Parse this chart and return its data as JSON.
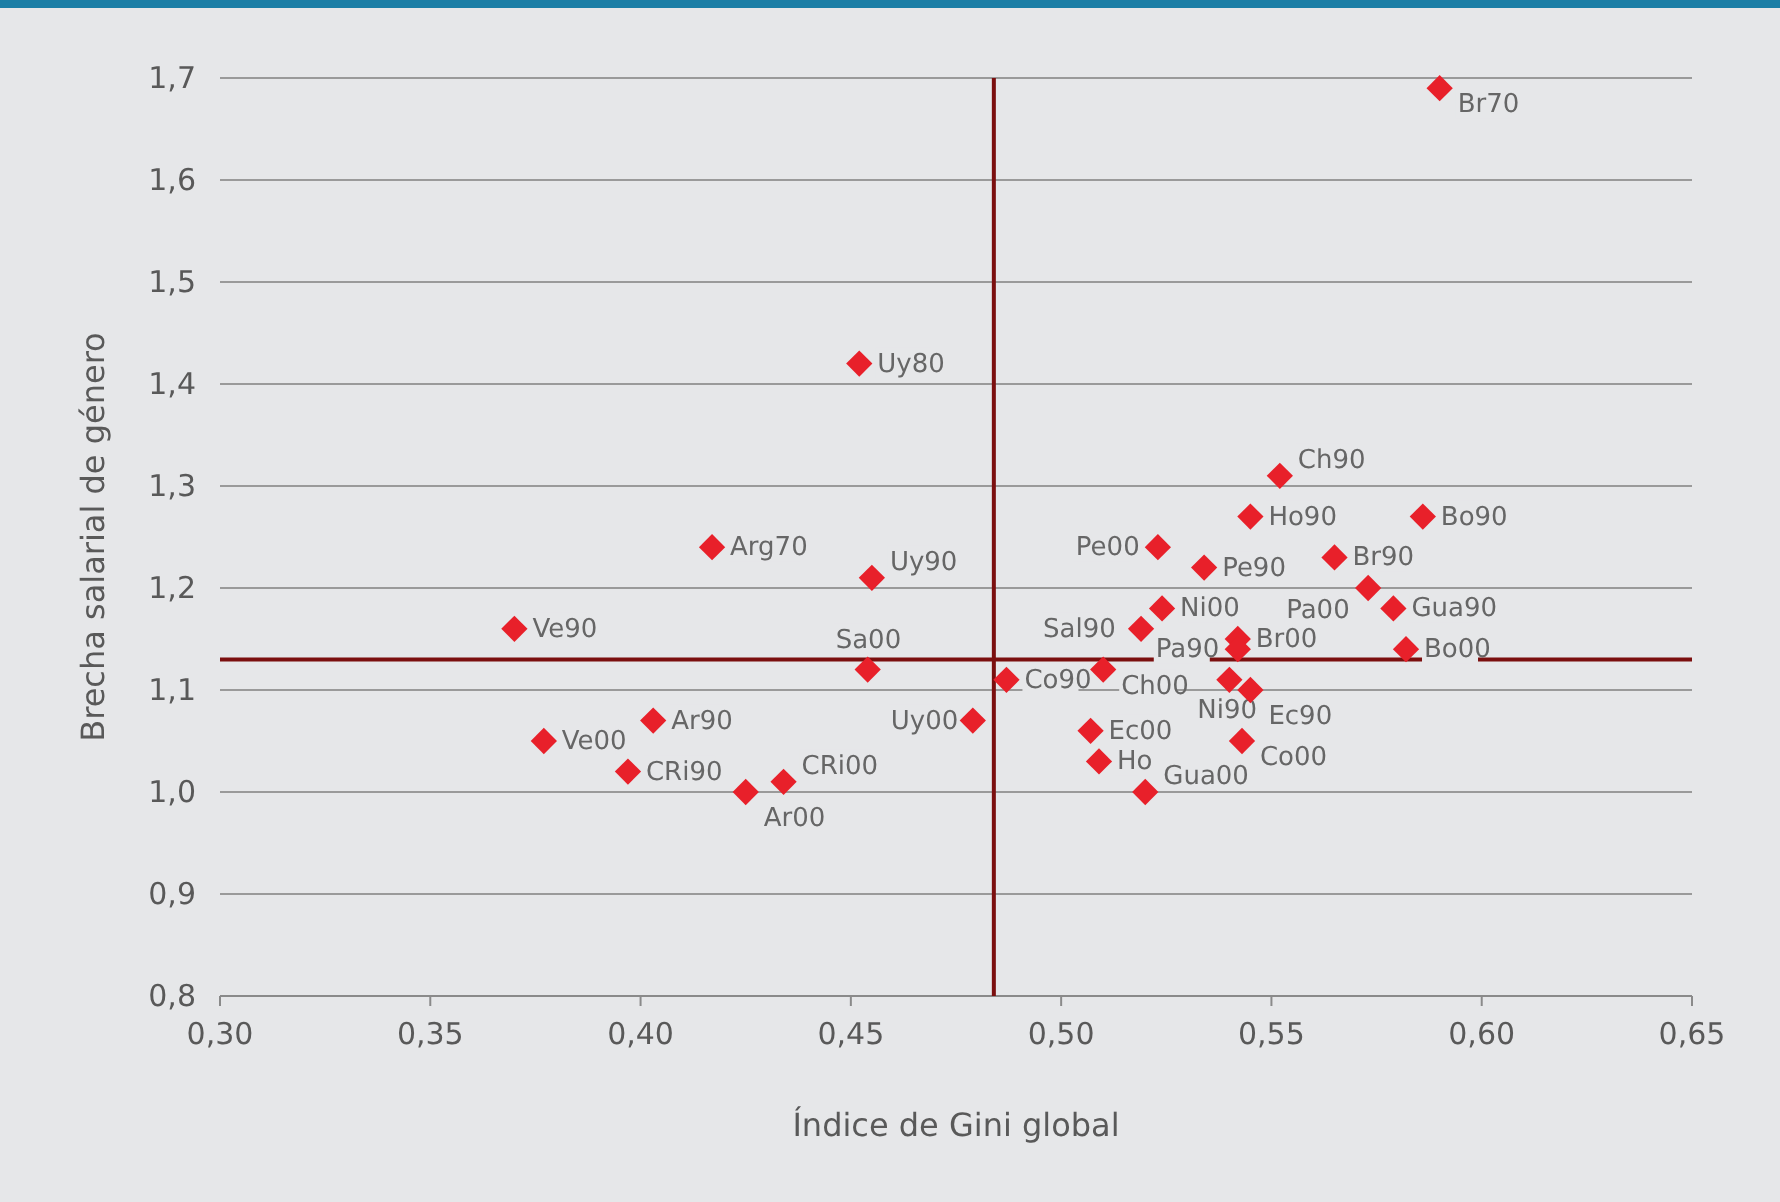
{
  "chart_data": {
    "type": "scatter",
    "xlabel": "Índice de Gini global",
    "ylabel": "Brecha salarial de género",
    "xlim": [
      0.3,
      0.65
    ],
    "xticks": [
      {
        "value": 0.3,
        "label": "0,30"
      },
      {
        "value": 0.35,
        "label": "0,35"
      },
      {
        "value": 0.4,
        "label": "0,40"
      },
      {
        "value": 0.45,
        "label": "0,45"
      },
      {
        "value": 0.5,
        "label": "0,50"
      },
      {
        "value": 0.55,
        "label": "0,55"
      },
      {
        "value": 0.6,
        "label": "0,60"
      },
      {
        "value": 0.65,
        "label": "0,65"
      }
    ],
    "ylim": [
      0.8,
      1.7
    ],
    "yticks": [
      {
        "value": 0.8,
        "label": "0,8"
      },
      {
        "value": 0.9,
        "label": "0,9"
      },
      {
        "value": 1.0,
        "label": "1,0"
      },
      {
        "value": 1.1,
        "label": "1,1"
      },
      {
        "value": 1.2,
        "label": "1,2"
      },
      {
        "value": 1.3,
        "label": "1,3"
      },
      {
        "value": 1.4,
        "label": "1,4"
      },
      {
        "value": 1.5,
        "label": "1,5"
      },
      {
        "value": 1.6,
        "label": "1,6"
      },
      {
        "value": 1.7,
        "label": "1,7"
      }
    ],
    "grid": "y",
    "marker": "diamond",
    "series": [
      {
        "color": "#e8202a",
        "x": [
          0.59,
          0.452,
          0.417,
          0.455,
          0.37,
          0.454,
          0.487,
          0.479,
          0.403,
          0.377,
          0.397,
          0.425,
          0.434,
          0.552,
          0.545,
          0.586,
          0.523,
          0.534,
          0.565,
          0.573,
          0.579,
          0.524,
          0.519,
          0.542,
          0.542,
          0.582,
          0.51,
          0.54,
          0.545,
          0.507,
          0.543,
          0.509,
          0.52
        ],
        "values": [
          1.69,
          1.42,
          1.24,
          1.21,
          1.16,
          1.12,
          1.11,
          1.07,
          1.07,
          1.05,
          1.02,
          1.0,
          1.01,
          1.31,
          1.27,
          1.27,
          1.24,
          1.22,
          1.23,
          1.2,
          1.18,
          1.18,
          1.16,
          1.15,
          1.14,
          1.14,
          1.12,
          1.11,
          1.1,
          1.06,
          1.05,
          1.03,
          1.0
        ]
      }
    ],
    "ref_lines": [
      {
        "axis": "x",
        "value": 0.484,
        "color": "#7b0f0f"
      },
      {
        "axis": "y",
        "value": 1.13,
        "color": "#7b0f0f"
      }
    ],
    "annotations": [
      {
        "text": "Br70",
        "x": 0.59,
        "y": 1.69
      },
      {
        "text": "Uy80",
        "x": 0.452,
        "y": 1.42
      },
      {
        "text": "Arg70",
        "x": 0.417,
        "y": 1.24
      },
      {
        "text": "Uy90",
        "x": 0.455,
        "y": 1.21
      },
      {
        "text": "Ve90",
        "x": 0.37,
        "y": 1.16
      },
      {
        "text": "Sa00",
        "x": 0.454,
        "y": 1.12
      },
      {
        "text": "Co90",
        "x": 0.487,
        "y": 1.11
      },
      {
        "text": "Uy00",
        "x": 0.479,
        "y": 1.07
      },
      {
        "text": "Ar90",
        "x": 0.403,
        "y": 1.07
      },
      {
        "text": "Ve00",
        "x": 0.377,
        "y": 1.05
      },
      {
        "text": "CRi90",
        "x": 0.397,
        "y": 1.02
      },
      {
        "text": "Ar00",
        "x": 0.425,
        "y": 1.0
      },
      {
        "text": "CRi00",
        "x": 0.434,
        "y": 1.01
      },
      {
        "text": "Ch90",
        "x": 0.552,
        "y": 1.31
      },
      {
        "text": "Ho90",
        "x": 0.545,
        "y": 1.27
      },
      {
        "text": "Bo90",
        "x": 0.586,
        "y": 1.27
      },
      {
        "text": "Pe00",
        "x": 0.523,
        "y": 1.24
      },
      {
        "text": "Pe90",
        "x": 0.534,
        "y": 1.22
      },
      {
        "text": "Br90",
        "x": 0.565,
        "y": 1.23
      },
      {
        "text": "Pa00",
        "x": 0.573,
        "y": 1.2
      },
      {
        "text": "Gua90",
        "x": 0.579,
        "y": 1.18
      },
      {
        "text": "Ni00",
        "x": 0.524,
        "y": 1.18
      },
      {
        "text": "Sal90",
        "x": 0.519,
        "y": 1.16
      },
      {
        "text": "Br00",
        "x": 0.542,
        "y": 1.15
      },
      {
        "text": "Pa90",
        "x": 0.542,
        "y": 1.14
      },
      {
        "text": "Bo00",
        "x": 0.582,
        "y": 1.14
      },
      {
        "text": "Ch00",
        "x": 0.51,
        "y": 1.12
      },
      {
        "text": "Ni90",
        "x": 0.54,
        "y": 1.11
      },
      {
        "text": "Ec90",
        "x": 0.545,
        "y": 1.1
      },
      {
        "text": "Ec00",
        "x": 0.507,
        "y": 1.06
      },
      {
        "text": "Co00",
        "x": 0.543,
        "y": 1.05
      },
      {
        "text": "Ho",
        "x": 0.509,
        "y": 1.03
      },
      {
        "text": "Gua00",
        "x": 0.52,
        "y": 1.0
      }
    ]
  }
}
